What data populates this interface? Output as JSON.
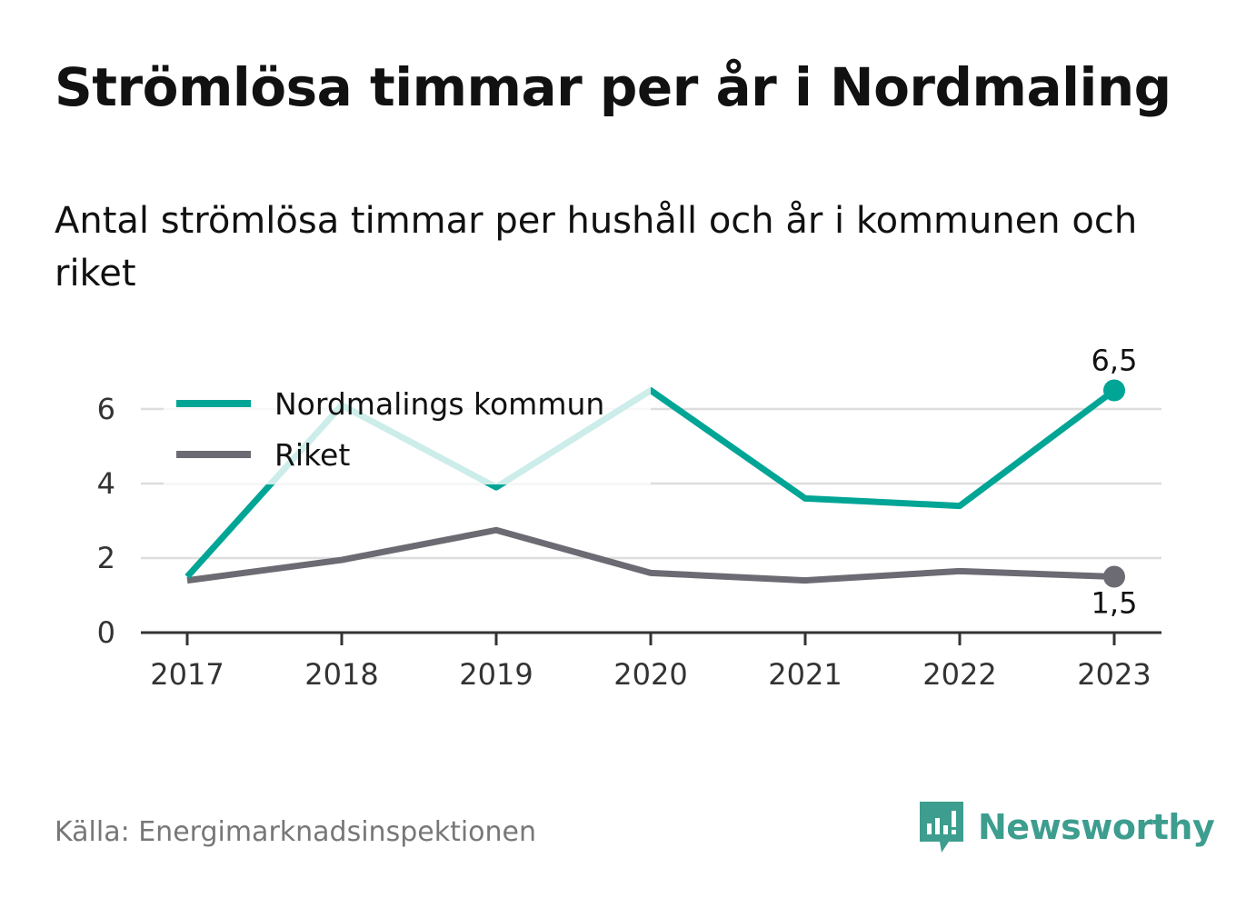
{
  "title": "Strömlösa timmar per år i Nordmaling",
  "subtitle": "Antal strömlösa timmar per hushåll och år i kommunen och riket",
  "source": "Källa: Energimarknadsinspektionen",
  "brand": "Newsworthy",
  "colors": {
    "kommun": "#00a596",
    "kommun_faded": "#cdeeea",
    "riket": "#6c6b73",
    "grid": "#dddddd",
    "axis": "#333333",
    "brand": "#3d9d8e"
  },
  "chart_data": {
    "type": "line",
    "x": [
      "2017",
      "2018",
      "2019",
      "2020",
      "2021",
      "2022",
      "2023"
    ],
    "series": [
      {
        "name": "Nordmalings kommun",
        "values": [
          1.5,
          6.1,
          3.9,
          6.5,
          3.6,
          3.4,
          6.5
        ]
      },
      {
        "name": "Riket",
        "values": [
          1.4,
          1.95,
          2.75,
          1.6,
          1.4,
          1.65,
          1.5
        ]
      }
    ],
    "yticks": [
      "0",
      "2",
      "4",
      "6"
    ],
    "ylim": [
      0,
      7
    ],
    "end_labels": [
      "6,5",
      "1,5"
    ],
    "grid": true,
    "legend": "top-left"
  }
}
